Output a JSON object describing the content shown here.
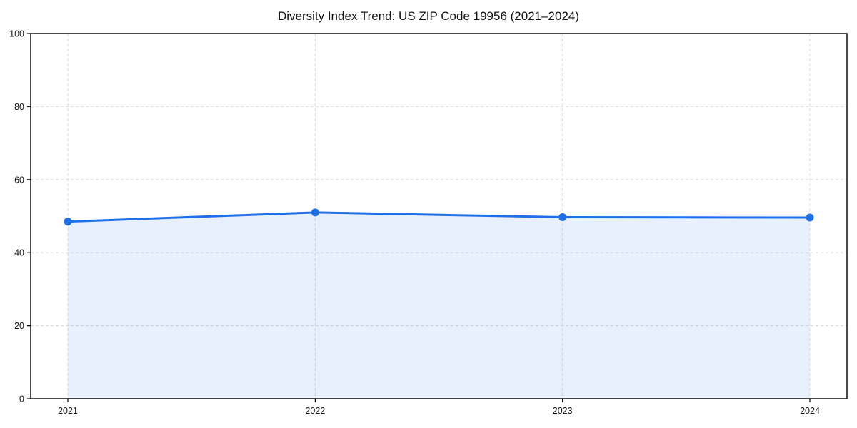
{
  "page": {
    "title": "Diversity Index Trend: US ZIP Code 19956 (2021–2024)"
  },
  "chart_data": {
    "type": "line",
    "area_fill": true,
    "title": "Diversity Index Trend: US ZIP Code 19956 (2021–2024)",
    "x": [
      "2021",
      "2022",
      "2023",
      "2024"
    ],
    "series": [
      {
        "name": "Diversity Index",
        "values": [
          48.5,
          51.0,
          49.7,
          49.6
        ]
      }
    ],
    "xlabel": "",
    "ylabel": "",
    "ylim": [
      0,
      100
    ],
    "yticks": [
      0,
      20,
      40,
      60,
      80,
      100
    ],
    "grid": true,
    "grid_style": "dashed",
    "legend_position": "none",
    "colors": {
      "line": "#1f6fe8",
      "marker": "#1f6fe8",
      "fill": "rgba(31,111,232,0.10)",
      "grid": "#d9d9d9",
      "frame": "#000000",
      "text": "#111111",
      "background": "#ffffff"
    }
  }
}
